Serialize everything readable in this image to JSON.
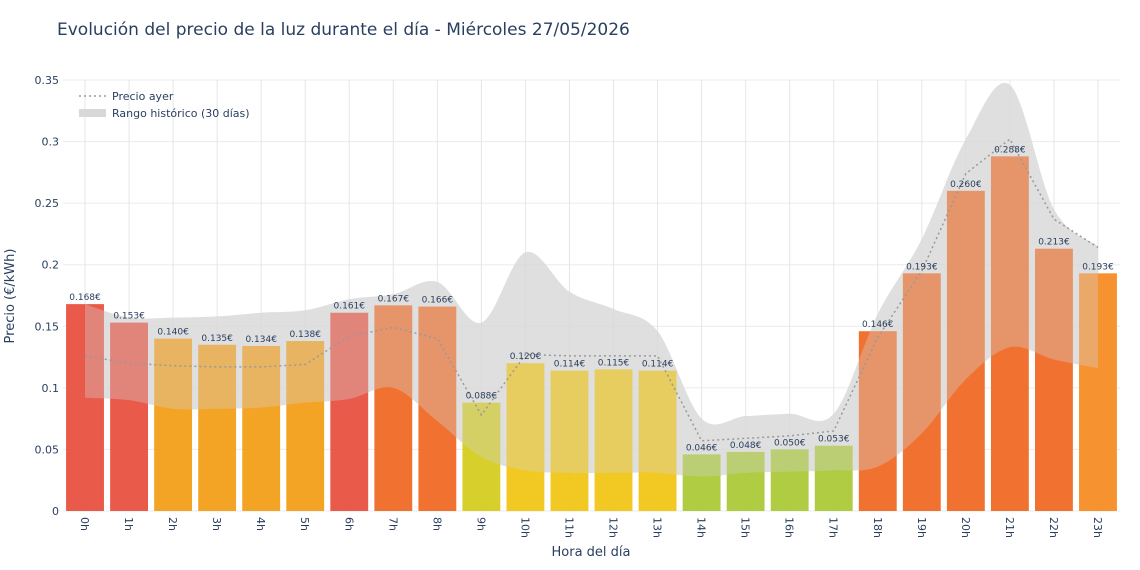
{
  "chart_data": {
    "type": "bar",
    "title": "Evolución del precio de la luz durante el día - Miércoles 27/05/2026",
    "xlabel": "Hora del día",
    "ylabel": "Precio (€/kWh)",
    "ylim": [
      0,
      0.35
    ],
    "yticks": [
      0,
      0.05,
      0.1,
      0.15,
      0.2,
      0.25,
      0.3,
      0.35
    ],
    "ytick_labels": [
      "0",
      "0.05",
      "0.1",
      "0.15",
      "0.2",
      "0.25",
      "0.3",
      "0.35"
    ],
    "grid": true,
    "legend_position": "top-left",
    "categories": [
      "0h",
      "1h",
      "2h",
      "3h",
      "4h",
      "5h",
      "6h",
      "7h",
      "8h",
      "9h",
      "10h",
      "11h",
      "12h",
      "13h",
      "14h",
      "15h",
      "16h",
      "17h",
      "18h",
      "19h",
      "20h",
      "21h",
      "22h",
      "23h"
    ],
    "values": [
      0.168,
      0.153,
      0.14,
      0.135,
      0.134,
      0.138,
      0.161,
      0.167,
      0.166,
      0.088,
      0.12,
      0.114,
      0.115,
      0.114,
      0.046,
      0.048,
      0.05,
      0.053,
      0.146,
      0.193,
      0.26,
      0.288,
      0.213,
      0.193
    ],
    "value_labels": [
      "0.168€",
      "0.153€",
      "0.140€",
      "0.135€",
      "0.134€",
      "0.138€",
      "0.161€",
      "0.167€",
      "0.166€",
      "0.088€",
      "0.120€",
      "0.114€",
      "0.115€",
      "0.114€",
      "0.046€",
      "0.048€",
      "0.050€",
      "0.053€",
      "0.146€",
      "0.193€",
      "0.260€",
      "0.288€",
      "0.213€",
      "0.193€"
    ],
    "bar_colors": [
      "#e74c3c",
      "#e74c3c",
      "#f39c12",
      "#f39c12",
      "#f39c12",
      "#f39c12",
      "#e74c3c",
      "#f0661e",
      "#f0661e",
      "#d4cb1a",
      "#f1c40f",
      "#f1c40f",
      "#f1c40f",
      "#f1c40f",
      "#a8c832",
      "#a8c832",
      "#a8c832",
      "#a8c832",
      "#f0661e",
      "#f0661e",
      "#f0661e",
      "#f0661e",
      "#f0661e",
      "#f58a1e"
    ],
    "series": [
      {
        "name": "Precio ayer",
        "style": "dotted-line",
        "color": "#999999",
        "values": [
          0.126,
          0.12,
          0.118,
          0.117,
          0.117,
          0.119,
          0.142,
          0.149,
          0.14,
          0.078,
          0.127,
          0.126,
          0.126,
          0.126,
          0.057,
          0.059,
          0.061,
          0.065,
          0.141,
          0.195,
          0.274,
          0.302,
          0.237,
          0.214
        ]
      },
      {
        "name": "Rango histórico (30 días)",
        "style": "band",
        "color": "#d8d8d8",
        "upper": [
          0.168,
          0.157,
          0.157,
          0.158,
          0.161,
          0.163,
          0.172,
          0.176,
          0.186,
          0.153,
          0.21,
          0.178,
          0.164,
          0.146,
          0.075,
          0.077,
          0.079,
          0.079,
          0.16,
          0.221,
          0.302,
          0.346,
          0.245,
          0.215
        ],
        "lower": [
          0.092,
          0.09,
          0.083,
          0.083,
          0.084,
          0.088,
          0.091,
          0.1,
          0.073,
          0.044,
          0.033,
          0.031,
          0.031,
          0.031,
          0.028,
          0.031,
          0.032,
          0.033,
          0.036,
          0.063,
          0.107,
          0.133,
          0.123,
          0.116
        ]
      }
    ]
  }
}
